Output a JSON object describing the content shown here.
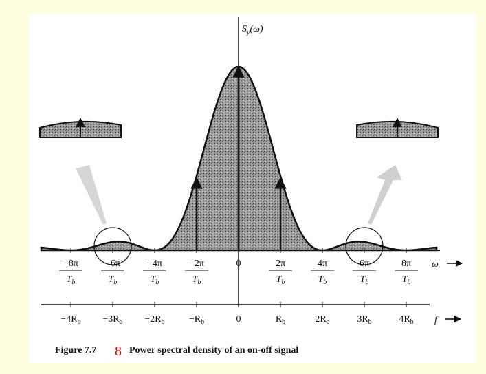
{
  "y_axis_label": {
    "base": "S",
    "sub": "y",
    "rest": "(ω)"
  },
  "omega_axis": {
    "name": "ω",
    "labels": [
      {
        "num": "−8π",
        "den": "T",
        "sub": "b"
      },
      {
        "num": "−6π",
        "den": "T",
        "sub": "b"
      },
      {
        "num": "−4π",
        "den": "T",
        "sub": "b"
      },
      {
        "num": "−2π",
        "den": "T",
        "sub": "b"
      },
      {
        "num": "0"
      },
      {
        "num": "2π",
        "den": "T",
        "sub": "b"
      },
      {
        "num": "4π",
        "den": "T",
        "sub": "b"
      },
      {
        "num": "6π",
        "den": "T",
        "sub": "b"
      },
      {
        "num": "8π",
        "den": "T",
        "sub": "b"
      }
    ]
  },
  "f_axis": {
    "name": "f",
    "labels": [
      {
        "text": "−4R",
        "sub": "b"
      },
      {
        "text": "−3R",
        "sub": "b"
      },
      {
        "text": "−2R",
        "sub": "b"
      },
      {
        "text": "−R",
        "sub": "b"
      },
      {
        "text": "0"
      },
      {
        "text": "R",
        "sub": "b"
      },
      {
        "text": "2R",
        "sub": "b"
      },
      {
        "text": "3R",
        "sub": "b"
      },
      {
        "text": "4R",
        "sub": "b"
      }
    ]
  },
  "caption": {
    "number": "Figure 7.7",
    "annotation": "8",
    "text": "Power spectral density of an on-off signal"
  }
}
